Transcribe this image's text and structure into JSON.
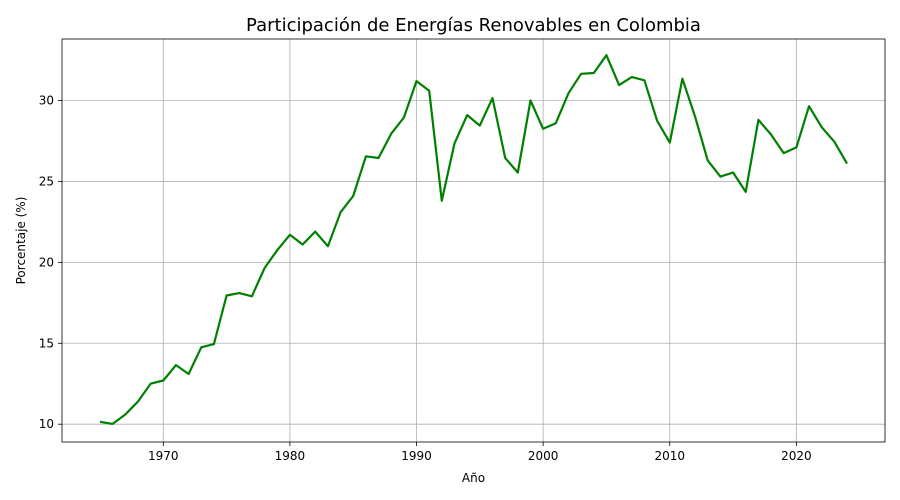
{
  "chart_data": {
    "type": "line",
    "title": "Participación de Energías Renovables en Colombia",
    "xlabel": "Año",
    "ylabel": "Porcentaje (%)",
    "xlim": [
      1962,
      2027
    ],
    "ylim": [
      8.9,
      33.8
    ],
    "xticks": [
      1970,
      1980,
      1990,
      2000,
      2010,
      2020
    ],
    "yticks": [
      10,
      15,
      20,
      25,
      30
    ],
    "grid": true,
    "line_color": "#008000",
    "x": [
      1965,
      1966,
      1967,
      1968,
      1969,
      1970,
      1971,
      1972,
      1973,
      1974,
      1975,
      1976,
      1977,
      1978,
      1979,
      1980,
      1981,
      1982,
      1983,
      1984,
      1985,
      1986,
      1987,
      1988,
      1989,
      1990,
      1991,
      1992,
      1993,
      1994,
      1995,
      1996,
      1997,
      1998,
      1999,
      2000,
      2001,
      2002,
      2003,
      2004,
      2005,
      2006,
      2007,
      2008,
      2009,
      2010,
      2011,
      2012,
      2013,
      2014,
      2015,
      2016,
      2017,
      2018,
      2019,
      2020,
      2021,
      2022,
      2023,
      2024
    ],
    "values": [
      10.15,
      10.02,
      10.6,
      11.4,
      12.5,
      12.7,
      13.65,
      13.1,
      14.75,
      14.95,
      17.95,
      18.1,
      17.9,
      19.65,
      20.75,
      21.7,
      21.1,
      21.9,
      21.0,
      23.1,
      24.1,
      26.55,
      26.45,
      27.95,
      28.95,
      31.2,
      30.6,
      23.8,
      27.35,
      29.1,
      28.45,
      30.15,
      26.45,
      25.55,
      30.0,
      28.25,
      28.6,
      30.45,
      31.65,
      31.7,
      32.8,
      30.95,
      31.45,
      31.25,
      28.75,
      27.4,
      31.35,
      29.0,
      26.3,
      25.3,
      25.55,
      24.35,
      28.8,
      27.9,
      26.75,
      27.1,
      29.65,
      28.35,
      27.45,
      26.1
    ]
  }
}
